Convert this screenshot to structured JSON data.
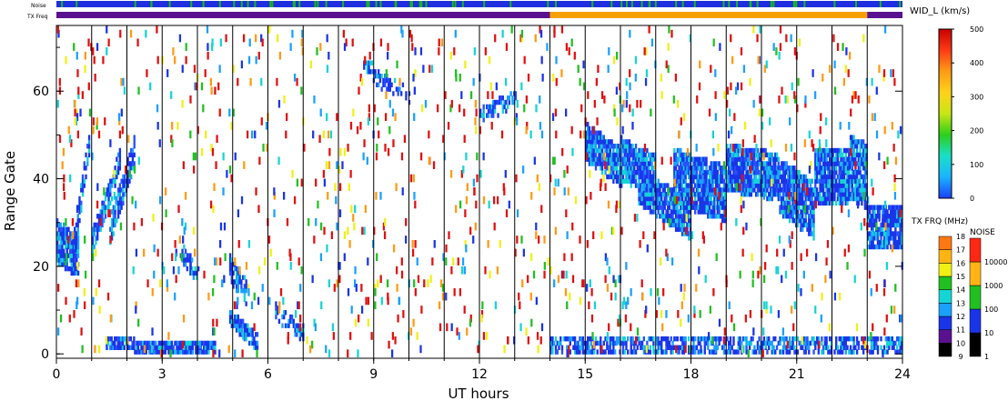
{
  "chart_data": {
    "type": "heatmap",
    "xlabel": "UT hours",
    "ylabel": "Range Gate",
    "xlim": [
      0,
      24
    ],
    "ylim": [
      -1,
      75
    ],
    "x_ticks": [
      "0",
      "3",
      "6",
      "9",
      "12",
      "15",
      "18",
      "21",
      "24"
    ],
    "x_tick_values": [
      0,
      3,
      6,
      9,
      12,
      15,
      18,
      21,
      24
    ],
    "y_ticks": [
      "0",
      "20",
      "40",
      "60"
    ],
    "y_tick_values": [
      0,
      20,
      40,
      60
    ],
    "hour_lines": [
      1,
      2,
      3,
      4,
      5,
      6,
      7,
      8,
      9,
      10,
      11,
      12,
      13,
      14,
      15,
      16,
      17,
      18,
      19,
      20,
      21,
      22,
      23
    ],
    "grid": true,
    "noise_strip_label": "Noise",
    "txfreq_strip_label": "TX Freq",
    "txfreq_segments": [
      {
        "start": 0,
        "end": 14,
        "color": "#5a1190"
      },
      {
        "start": 14,
        "end": 23,
        "color": "#f5a000"
      },
      {
        "start": 23,
        "end": 24,
        "color": "#5a1190"
      }
    ],
    "noise_color": "#1f2fe0",
    "noise_accent_color": "#18b818",
    "width_scale": {
      "title": "WID_L (km/s)",
      "ticks": [
        "0",
        "100",
        "200",
        "300",
        "400",
        "500"
      ],
      "tick_values": [
        0,
        100,
        200,
        300,
        400,
        500
      ],
      "colors": [
        "#1a40ff",
        "#19b4ff",
        "#19e0c8",
        "#2ccf1a",
        "#c8e614",
        "#ffd21a",
        "#ff9a14",
        "#ff3a14",
        "#c80000"
      ]
    },
    "txfreq_scale": {
      "title": "TX FRQ (MHz)",
      "ticks": [
        "9",
        "10",
        "11",
        "12",
        "13",
        "14",
        "15",
        "16",
        "17",
        "18"
      ],
      "colors": [
        "#000000",
        "#5a1190",
        "#1a35e8",
        "#1aa0ff",
        "#16d4d4",
        "#20c020",
        "#f0f014",
        "#ffb414",
        "#ff7814",
        "#ff2814"
      ]
    },
    "noise_scale": {
      "title": "NOISE",
      "ticks": [
        "1",
        "10",
        "100",
        "1000",
        "10000"
      ],
      "colors": [
        "#000000",
        "#1a35e8",
        "#20c020",
        "#ffb414",
        "#ff2814"
      ]
    },
    "scatter_bands": [
      {
        "t0": 0.0,
        "t1": 0.6,
        "gate_start": 25,
        "gate_end": 22,
        "thickness": 9,
        "density": 0.85
      },
      {
        "t0": 0.4,
        "t1": 0.9,
        "gate_start": 20,
        "gate_end": 48,
        "thickness": 5,
        "density": 0.7
      },
      {
        "t0": 1.0,
        "t1": 1.8,
        "gate_start": 25,
        "gate_end": 44,
        "thickness": 5,
        "density": 0.7
      },
      {
        "t0": 1.5,
        "t1": 2.2,
        "gate_start": 28,
        "gate_end": 46,
        "thickness": 6,
        "density": 0.7
      },
      {
        "t0": 1.4,
        "t1": 2.2,
        "gate_start": 2,
        "gate_end": 2,
        "thickness": 2,
        "density": 0.9
      },
      {
        "t0": 2.2,
        "t1": 4.5,
        "gate_start": 1,
        "gate_end": 1,
        "thickness": 2,
        "density": 0.9
      },
      {
        "t0": 3.5,
        "t1": 4.0,
        "gate_start": 23,
        "gate_end": 17,
        "thickness": 4,
        "density": 0.5
      },
      {
        "t0": 4.9,
        "t1": 5.4,
        "gate_start": 19,
        "gate_end": 13,
        "thickness": 5,
        "density": 0.7
      },
      {
        "t0": 4.9,
        "t1": 5.7,
        "gate_start": 8,
        "gate_end": 2,
        "thickness": 3,
        "density": 0.8
      },
      {
        "t0": 6.2,
        "t1": 7.0,
        "gate_start": 9,
        "gate_end": 4,
        "thickness": 3,
        "density": 0.6
      },
      {
        "t0": 8.7,
        "t1": 9.3,
        "gate_start": 66,
        "gate_end": 61,
        "thickness": 3,
        "density": 0.6
      },
      {
        "t0": 9.3,
        "t1": 10.0,
        "gate_start": 62,
        "gate_end": 58,
        "thickness": 3,
        "density": 0.5
      },
      {
        "t0": 12.0,
        "t1": 13.0,
        "gate_start": 54,
        "gate_end": 58,
        "thickness": 3,
        "density": 0.5
      },
      {
        "t0": 15.0,
        "t1": 16.0,
        "gate_start": 48,
        "gate_end": 42,
        "thickness": 8,
        "density": 0.9
      },
      {
        "t0": 16.0,
        "t1": 17.0,
        "gate_start": 44,
        "gate_end": 40,
        "thickness": 9,
        "density": 0.9
      },
      {
        "t0": 16.5,
        "t1": 18.0,
        "gate_start": 38,
        "gate_end": 30,
        "thickness": 8,
        "density": 0.9
      },
      {
        "t0": 17.5,
        "t1": 19.0,
        "gate_start": 40,
        "gate_end": 36,
        "thickness": 12,
        "density": 0.9
      },
      {
        "t0": 19.0,
        "t1": 20.5,
        "gate_start": 42,
        "gate_end": 40,
        "thickness": 10,
        "density": 0.9
      },
      {
        "t0": 20.5,
        "t1": 21.5,
        "gate_start": 38,
        "gate_end": 32,
        "thickness": 12,
        "density": 0.9
      },
      {
        "t0": 21.5,
        "t1": 22.5,
        "gate_start": 40,
        "gate_end": 40,
        "thickness": 12,
        "density": 0.9
      },
      {
        "t0": 22.5,
        "t1": 23.0,
        "gate_start": 42,
        "gate_end": 40,
        "thickness": 14,
        "density": 0.85
      },
      {
        "t0": 23.0,
        "t1": 24.0,
        "gate_start": 28,
        "gate_end": 28,
        "thickness": 9,
        "density": 0.85
      },
      {
        "t0": 14.0,
        "t1": 24.0,
        "gate_start": 1,
        "gate_end": 1,
        "thickness": 3,
        "density": 0.6
      }
    ]
  }
}
